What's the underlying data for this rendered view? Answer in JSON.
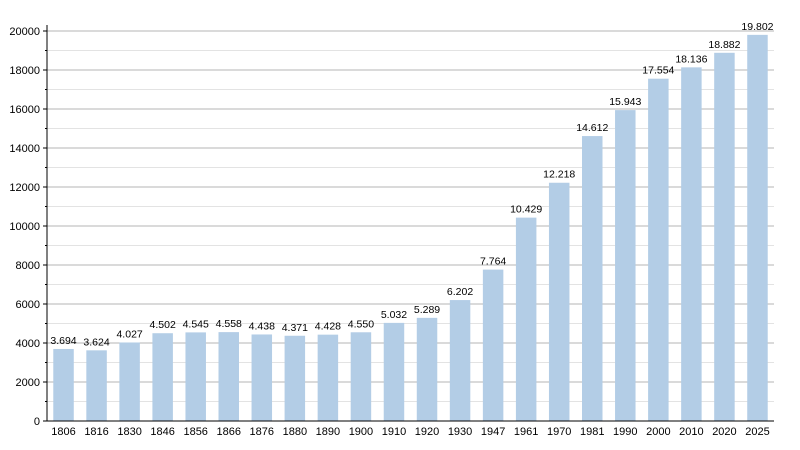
{
  "chart_data": {
    "type": "bar",
    "categories": [
      "1806",
      "1816",
      "1830",
      "1846",
      "1856",
      "1866",
      "1876",
      "1880",
      "1890",
      "1900",
      "1910",
      "1920",
      "1930",
      "1947",
      "1961",
      "1970",
      "1981",
      "1990",
      "2000",
      "2010",
      "2020",
      "2025"
    ],
    "values": [
      3694,
      3624,
      4027,
      4502,
      4545,
      4558,
      4438,
      4371,
      4428,
      4550,
      5032,
      5289,
      6202,
      7764,
      10429,
      12218,
      14612,
      15943,
      17554,
      18136,
      18882,
      19802
    ],
    "value_labels": [
      "3.694",
      "3.624",
      "4.027",
      "4.502",
      "4.545",
      "4.558",
      "4.438",
      "4.371",
      "4.428",
      "4.550",
      "5.032",
      "5.289",
      "6.202",
      "7.764",
      "10.429",
      "12.218",
      "14.612",
      "15.943",
      "17.554",
      "18.136",
      "18.882",
      "19.802"
    ],
    "y_ticks": [
      "0",
      "2000",
      "4000",
      "6000",
      "8000",
      "10000",
      "12000",
      "14000",
      "16000",
      "18000",
      "20000"
    ],
    "ylim": [
      0,
      20000
    ],
    "title": "",
    "xlabel": "",
    "ylabel": "",
    "grid": true,
    "bar_color": "#b3cde6",
    "major_grid_color": "#b4b4b4",
    "minor_grid_color": "#e3e3e3"
  }
}
